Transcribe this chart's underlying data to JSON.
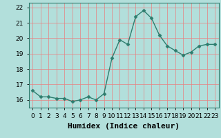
{
  "x": [
    0,
    1,
    2,
    3,
    4,
    5,
    6,
    7,
    8,
    9,
    10,
    11,
    12,
    13,
    14,
    15,
    16,
    17,
    18,
    19,
    20,
    21,
    22,
    23
  ],
  "y": [
    16.6,
    16.2,
    16.2,
    16.1,
    16.1,
    15.9,
    16.0,
    16.2,
    16.0,
    16.4,
    18.7,
    19.9,
    19.6,
    21.4,
    21.8,
    21.3,
    20.2,
    19.5,
    19.2,
    18.9,
    19.1,
    19.5,
    19.6,
    19.6
  ],
  "line_color": "#2e7d6e",
  "marker": "D",
  "marker_size": 2.5,
  "bg_color": "#b2dfdb",
  "grid_color": "#e88080",
  "xlabel": "Humidex (Indice chaleur)",
  "ylim": [
    15.5,
    22.3
  ],
  "xlim": [
    -0.5,
    23.5
  ],
  "yticks": [
    16,
    17,
    18,
    19,
    20,
    21,
    22
  ],
  "xticks": [
    0,
    1,
    2,
    3,
    4,
    5,
    6,
    7,
    8,
    9,
    10,
    11,
    12,
    13,
    14,
    15,
    16,
    17,
    18,
    19,
    20,
    21,
    22,
    23
  ],
  "tick_fontsize": 6.5,
  "xlabel_fontsize": 8,
  "axis_color": "#2e7d6e",
  "title": ""
}
